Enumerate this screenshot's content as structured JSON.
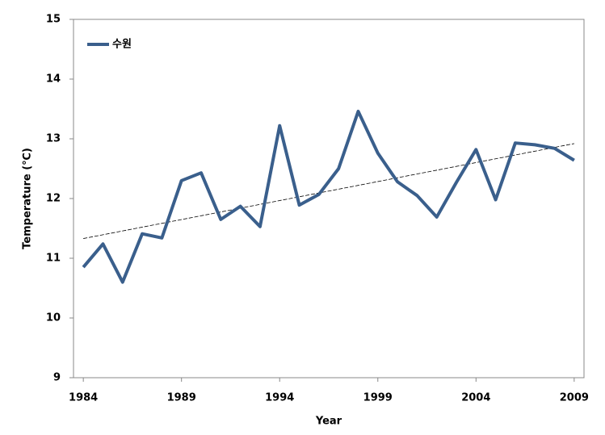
{
  "chart_data": {
    "type": "line",
    "x_label": "Year",
    "y_label": "Temperature (℃)",
    "x": [
      1984,
      1985,
      1986,
      1987,
      1988,
      1989,
      1990,
      1991,
      1992,
      1993,
      1994,
      1995,
      1996,
      1997,
      1998,
      1999,
      2000,
      2001,
      2002,
      2003,
      2004,
      2005,
      2006,
      2007,
      2008,
      2009
    ],
    "series": [
      {
        "name": "수원",
        "color": "#3a5f8c",
        "values": [
          10.85,
          11.24,
          10.6,
          11.41,
          11.34,
          12.3,
          12.43,
          11.65,
          11.87,
          11.53,
          13.22,
          11.89,
          12.07,
          12.5,
          13.46,
          12.76,
          12.28,
          12.05,
          11.69,
          12.27,
          12.82,
          11.98,
          12.93,
          12.9,
          12.84,
          12.64
        ]
      }
    ],
    "trendline": {
      "x": [
        1984,
        2009
      ],
      "values": [
        11.33,
        12.92
      ],
      "color": "#000000"
    },
    "xlim": [
      1983.5,
      2009.5
    ],
    "xticks": [
      1984,
      1989,
      1994,
      1999,
      2004,
      2009
    ],
    "ylim": [
      9,
      15
    ],
    "yticks": [
      9,
      10,
      11,
      12,
      13,
      14,
      15
    ],
    "grid": false,
    "legend": "upper left"
  }
}
